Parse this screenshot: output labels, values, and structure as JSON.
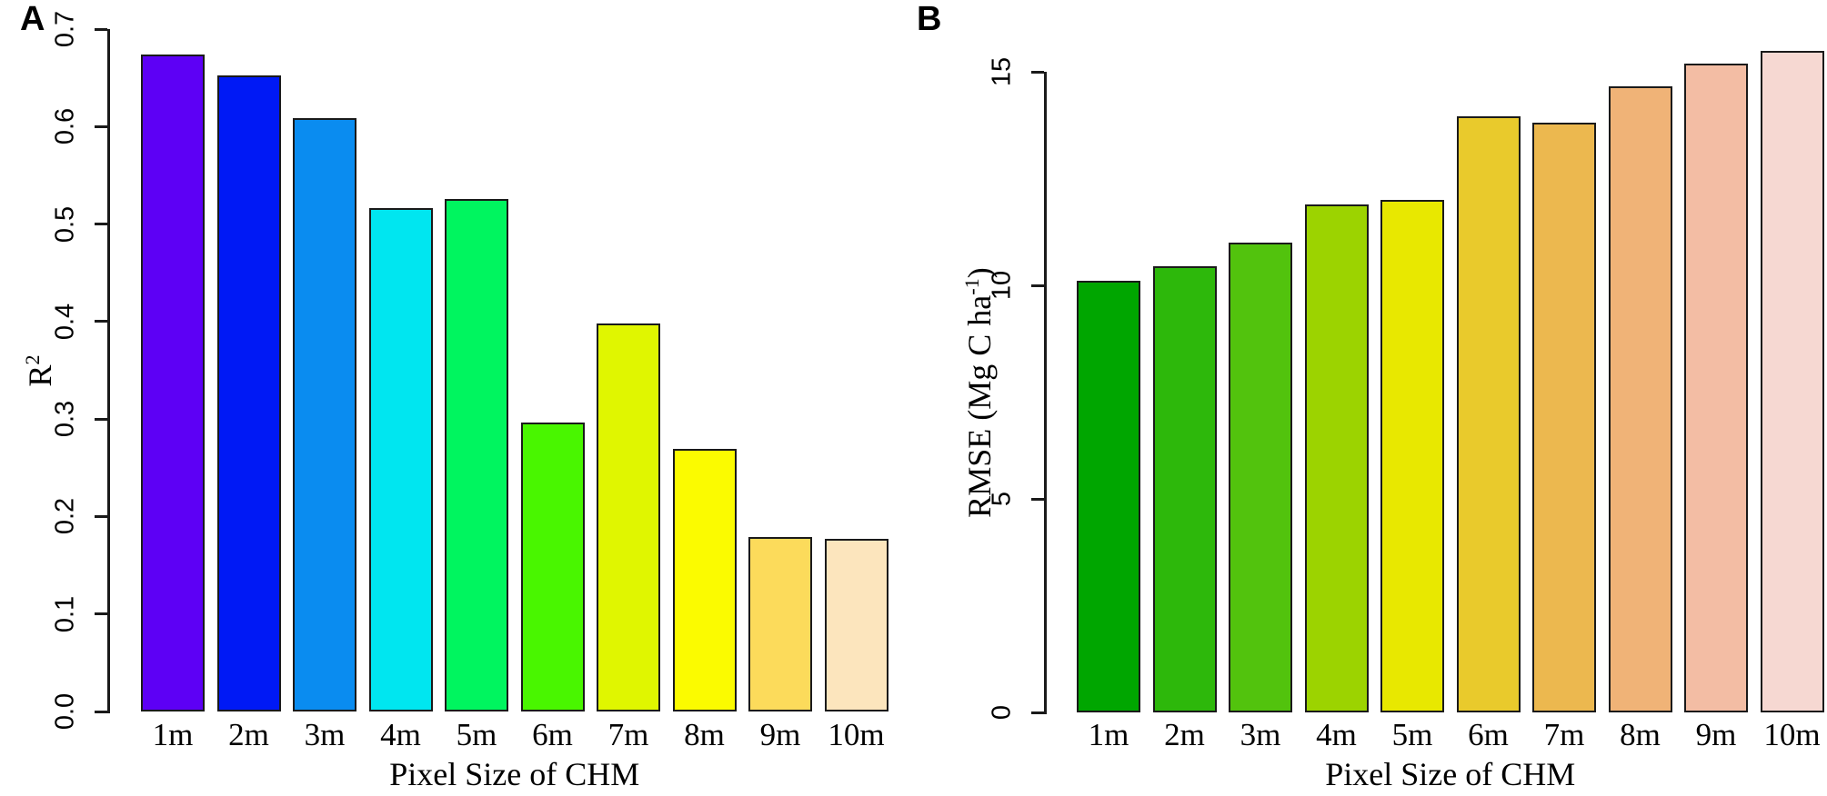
{
  "figure": {
    "panels": [
      {
        "label": "A"
      },
      {
        "label": "B"
      }
    ]
  },
  "chart_data": [
    {
      "type": "bar",
      "panel": "A",
      "title": "",
      "categories": [
        "1m",
        "2m",
        "3m",
        "4m",
        "5m",
        "6m",
        "7m",
        "8m",
        "9m",
        "10m"
      ],
      "values": [
        0.674,
        0.652,
        0.609,
        0.516,
        0.526,
        0.296,
        0.398,
        0.269,
        0.179,
        0.177
      ],
      "bar_colors": [
        "#5D00F5",
        "#0019F5",
        "#0A8CF0",
        "#00E6F0",
        "#00F55F",
        "#49F600",
        "#E0F600",
        "#FBFB00",
        "#FCDB5B",
        "#FCE5BD"
      ],
      "bar_border_color": "#1A1A1A",
      "xlabel": "Pixel Size of CHM",
      "ylabel": "R²",
      "ylim": [
        0,
        0.7
      ],
      "yticks": [
        0,
        0.1,
        0.2,
        0.3,
        0.4,
        0.5,
        0.6,
        0.7
      ],
      "ytick_labels": [
        "0.0",
        "0.1",
        "0.2",
        "0.3",
        "0.4",
        "0.5",
        "0.6",
        "0.7"
      ],
      "grid": false,
      "legend_position": "none"
    },
    {
      "type": "bar",
      "panel": "B",
      "title": "",
      "categories": [
        "1m",
        "2m",
        "3m",
        "4m",
        "5m",
        "6m",
        "7m",
        "8m",
        "9m",
        "10m"
      ],
      "values": [
        10.1,
        10.45,
        11.0,
        11.9,
        12.0,
        13.95,
        13.8,
        14.65,
        15.2,
        15.5
      ],
      "bar_colors": [
        "#00A600",
        "#2DB80B",
        "#52C30D",
        "#9CD300",
        "#E8E800",
        "#E9CA2C",
        "#ECB84F",
        "#F0B377",
        "#F3BDA4",
        "#F6D8D2"
      ],
      "bar_border_color": "#1A1A1A",
      "xlabel": "Pixel Size of CHM",
      "ylabel": "RMSE  (Mg C ha⁻¹)",
      "ylim": [
        0,
        15
      ],
      "yticks": [
        0,
        5,
        10,
        15
      ],
      "ytick_labels": [
        "0",
        "5",
        "10",
        "15"
      ],
      "grid": false,
      "legend_position": "none"
    }
  ]
}
